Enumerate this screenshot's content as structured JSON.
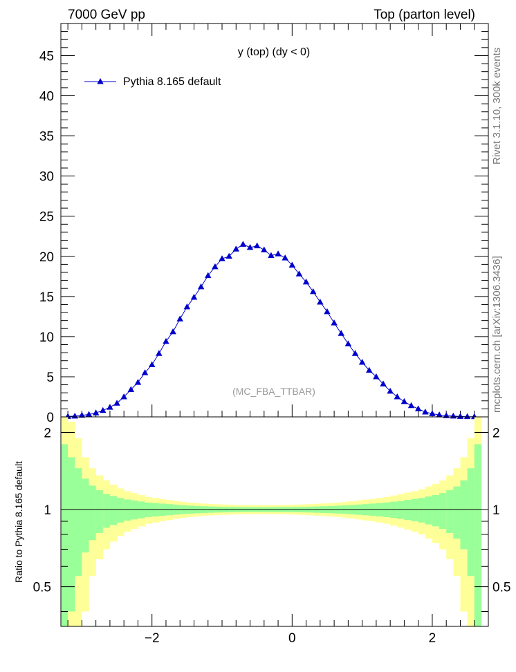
{
  "header": {
    "left": "7000 GeV pp",
    "right": "Top (parton level)"
  },
  "side_text": {
    "rivet": "Rivet 3.1.10,  300k events",
    "mcplots": "mcplots.cern.ch [arXiv:1306.3436]"
  },
  "colors": {
    "series": "#0000cc",
    "band_inner": "#99ff99",
    "band_outer": "#ffff99",
    "ref_line": "#000000",
    "watermark": "#999999"
  },
  "chart_data": [
    {
      "type": "line",
      "title": "y (top) (dy < 0)",
      "watermark": "(MC_FBA_TTBAR)",
      "legend": {
        "label": "Pythia 8.165 default",
        "marker": "triangle-up",
        "placement": "top-left"
      },
      "xlim": [
        -3.3,
        2.8
      ],
      "ylim": [
        0,
        49
      ],
      "yticks": [
        0,
        5,
        10,
        15,
        20,
        25,
        30,
        35,
        40,
        45
      ],
      "series": [
        {
          "name": "Pythia 8.165 default",
          "x": [
            -3.2,
            -3.1,
            -3.0,
            -2.9,
            -2.8,
            -2.7,
            -2.6,
            -2.5,
            -2.4,
            -2.3,
            -2.2,
            -2.1,
            -2.0,
            -1.9,
            -1.8,
            -1.7,
            -1.6,
            -1.5,
            -1.4,
            -1.3,
            -1.2,
            -1.1,
            -1.0,
            -0.9,
            -0.8,
            -0.7,
            -0.6,
            -0.5,
            -0.4,
            -0.3,
            -0.2,
            -0.1,
            0.0,
            0.1,
            0.2,
            0.3,
            0.4,
            0.5,
            0.6,
            0.7,
            0.8,
            0.9,
            1.0,
            1.1,
            1.2,
            1.3,
            1.4,
            1.5,
            1.6,
            1.7,
            1.8,
            1.9,
            2.0,
            2.1,
            2.2,
            2.3,
            2.4,
            2.5,
            2.6
          ],
          "y": [
            0.05,
            0.1,
            0.2,
            0.3,
            0.5,
            0.8,
            1.2,
            1.7,
            2.5,
            3.4,
            4.3,
            5.5,
            6.5,
            7.9,
            9.4,
            10.6,
            12.2,
            13.7,
            14.9,
            16.2,
            17.6,
            18.7,
            19.7,
            20.0,
            20.9,
            21.5,
            21.1,
            21.3,
            20.8,
            20.1,
            20.3,
            19.8,
            18.9,
            17.8,
            16.8,
            15.6,
            14.3,
            13.1,
            11.7,
            10.4,
            9.1,
            7.9,
            6.8,
            5.8,
            5.0,
            4.1,
            3.2,
            2.5,
            1.9,
            1.4,
            1.0,
            0.6,
            0.4,
            0.25,
            0.15,
            0.1,
            0.05,
            0.03,
            0.02
          ]
        }
      ]
    },
    {
      "type": "area",
      "ylabel": "Ratio to Pythia 8.165 default",
      "xlim": [
        -3.3,
        2.8
      ],
      "ylim": [
        0.35,
        2.3
      ],
      "yticks": [
        0.5,
        1,
        2
      ],
      "xticks": [
        -2,
        0,
        2
      ],
      "xtick_labels": [
        "−2",
        "0",
        "2"
      ],
      "reference": 1,
      "bands": {
        "x_edges": [
          -3.3,
          -3.2,
          -3.1,
          -3.0,
          -2.9,
          -2.8,
          -2.7,
          -2.6,
          -2.5,
          -2.4,
          -2.3,
          -2.2,
          -2.1,
          -2.0,
          -1.9,
          -1.8,
          -1.7,
          -1.6,
          -1.5,
          -1.4,
          -1.3,
          -1.2,
          -1.1,
          -1.0,
          -0.9,
          -0.8,
          -0.7,
          -0.6,
          -0.5,
          -0.4,
          -0.3,
          -0.2,
          -0.1,
          0.0,
          0.1,
          0.2,
          0.3,
          0.4,
          0.5,
          0.6,
          0.7,
          0.8,
          0.9,
          1.0,
          1.1,
          1.2,
          1.3,
          1.4,
          1.5,
          1.6,
          1.7,
          1.8,
          1.9,
          2.0,
          2.1,
          2.2,
          2.3,
          2.4,
          2.5,
          2.6,
          2.7
        ],
        "inner_half_width": [
          0.8,
          0.6,
          0.45,
          0.32,
          0.24,
          0.19,
          0.15,
          0.13,
          0.11,
          0.095,
          0.085,
          0.075,
          0.065,
          0.06,
          0.055,
          0.05,
          0.045,
          0.04,
          0.036,
          0.033,
          0.03,
          0.028,
          0.026,
          0.025,
          0.024,
          0.023,
          0.022,
          0.022,
          0.022,
          0.022,
          0.022,
          0.023,
          0.023,
          0.024,
          0.025,
          0.026,
          0.028,
          0.03,
          0.032,
          0.035,
          0.038,
          0.042,
          0.046,
          0.05,
          0.055,
          0.06,
          0.066,
          0.073,
          0.08,
          0.09,
          0.1,
          0.11,
          0.125,
          0.14,
          0.16,
          0.19,
          0.23,
          0.3,
          0.45,
          0.8
        ],
        "outer_half_width": [
          1.6,
          1.2,
          0.9,
          0.6,
          0.45,
          0.36,
          0.3,
          0.25,
          0.21,
          0.18,
          0.16,
          0.14,
          0.12,
          0.11,
          0.1,
          0.09,
          0.08,
          0.072,
          0.065,
          0.06,
          0.055,
          0.051,
          0.048,
          0.046,
          0.044,
          0.042,
          0.041,
          0.041,
          0.041,
          0.041,
          0.041,
          0.042,
          0.043,
          0.045,
          0.047,
          0.05,
          0.053,
          0.056,
          0.06,
          0.065,
          0.07,
          0.077,
          0.085,
          0.093,
          0.1,
          0.11,
          0.12,
          0.135,
          0.15,
          0.165,
          0.18,
          0.2,
          0.23,
          0.26,
          0.3,
          0.36,
          0.45,
          0.6,
          0.9,
          1.6
        ]
      }
    }
  ]
}
